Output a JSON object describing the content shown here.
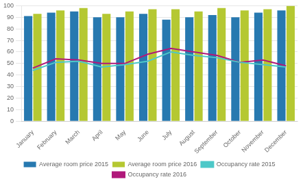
{
  "chart_data": {
    "type": "bar",
    "categories": [
      "January",
      "February",
      "March",
      "April",
      "May",
      "June",
      "July",
      "August",
      "September",
      "October",
      "November",
      "December"
    ],
    "series": [
      {
        "name": "Average room price 2015",
        "type": "bar",
        "color": "#2779B0",
        "values": [
          91,
          94,
          95,
          90,
          90,
          93,
          88,
          90,
          92,
          90,
          94,
          96
        ]
      },
      {
        "name": "Average room price 2016",
        "type": "bar",
        "color": "#B5C832",
        "values": [
          93,
          96,
          98,
          93,
          95,
          97,
          97,
          95,
          98,
          96,
          97,
          100
        ]
      },
      {
        "name": "Occupancy rate 2015",
        "type": "line",
        "color": "#4DC8C8",
        "values": [
          44,
          51,
          52,
          47,
          49,
          52,
          60,
          57,
          55,
          51,
          49,
          47
        ]
      },
      {
        "name": "Occupancy rate 2016",
        "type": "line",
        "color": "#B0187A",
        "values": [
          46,
          54,
          53,
          50,
          50,
          58,
          63,
          60,
          57,
          51,
          53,
          48
        ]
      }
    ],
    "ylim": [
      0,
      100
    ],
    "yticks": [
      0,
      10,
      20,
      30,
      40,
      50,
      60,
      70,
      80,
      90,
      100
    ],
    "grid": true,
    "legend": "bottom"
  }
}
